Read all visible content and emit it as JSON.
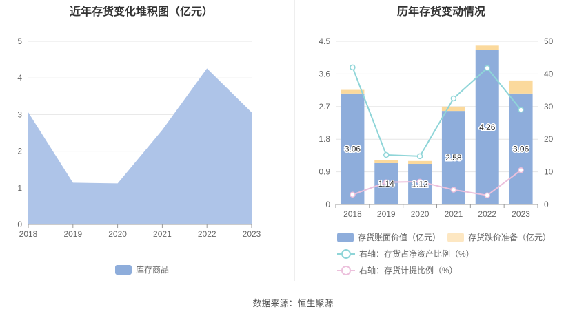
{
  "source": "数据来源：恒生聚源",
  "chart_data": [
    {
      "type": "area",
      "title": "近年存货变化堆积图（亿元）",
      "x": [
        "2018",
        "2019",
        "2020",
        "2021",
        "2022",
        "2023"
      ],
      "series": [
        {
          "name": "库存商品",
          "values": [
            3.06,
            1.14,
            1.12,
            2.58,
            4.26,
            3.06
          ],
          "color": "#aec4e8"
        }
      ],
      "ylim": [
        0,
        5
      ],
      "yticks": [
        0,
        1,
        2,
        3,
        4,
        5
      ],
      "grid": true,
      "legend": "bottom-center"
    },
    {
      "type": "bar",
      "title": "历年存货变动情况",
      "categories": [
        "2018",
        "2019",
        "2020",
        "2021",
        "2022",
        "2023"
      ],
      "series": [
        {
          "name": "存货账面价值（亿元）",
          "values": [
            3.06,
            1.14,
            1.12,
            2.58,
            4.26,
            3.06
          ],
          "color": "#8eaddb",
          "stack": "inv"
        },
        {
          "name": "存货跌价准备（亿元）",
          "values": [
            0.1,
            0.08,
            0.08,
            0.12,
            0.12,
            0.36
          ],
          "color": "#fbd99c",
          "stack": "inv"
        },
        {
          "name": "右轴：存货占净资产比例（%）",
          "values": [
            42,
            15.2,
            14.8,
            32.5,
            41.8,
            29
          ],
          "color": "#8fd5d8",
          "axis": "right",
          "type": "line"
        },
        {
          "name": "右轴：存货计提比例（%）",
          "values": [
            3,
            6.8,
            7,
            4.5,
            2.8,
            10.5
          ],
          "color": "#ecc0dc",
          "axis": "right",
          "type": "line"
        }
      ],
      "data_labels": [
        "3.06",
        "1.14",
        "1.12",
        "2.58",
        "4.26",
        "3.06"
      ],
      "ylim": [
        0,
        4.5
      ],
      "yticks": [
        "0",
        "0.9",
        "1.8",
        "2.7",
        "3.6",
        "4.5"
      ],
      "y2lim": [
        0,
        50
      ],
      "y2ticks": [
        "0",
        "10",
        "20",
        "30",
        "40",
        "50"
      ],
      "grid": true,
      "legend": "bottom"
    }
  ]
}
